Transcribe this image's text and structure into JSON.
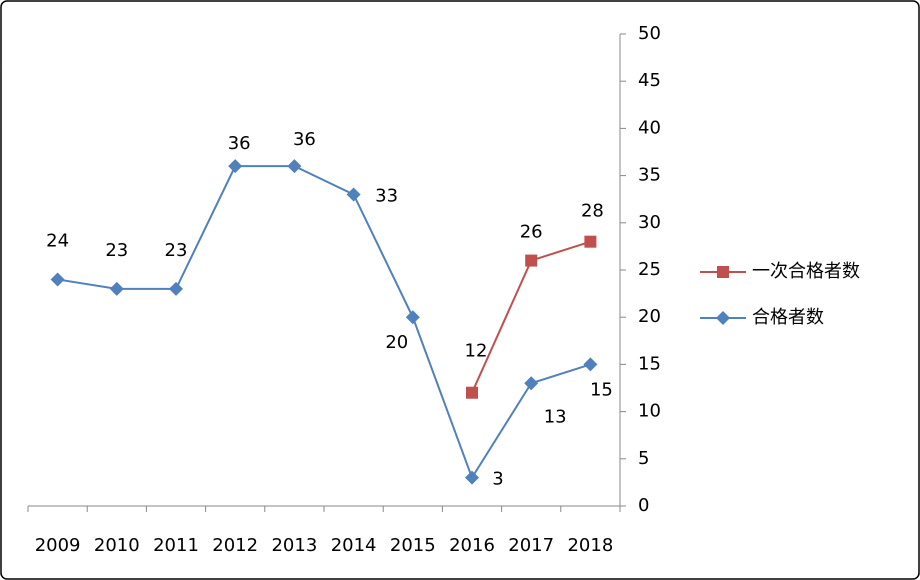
{
  "chart_data": {
    "type": "line",
    "categories": [
      "2009",
      "2010",
      "2011",
      "2012",
      "2013",
      "2014",
      "2015",
      "2016",
      "2017",
      "2018"
    ],
    "series": [
      {
        "name": "一次合格者数",
        "color": "#c0504d",
        "marker": "square",
        "values": [
          null,
          null,
          null,
          null,
          null,
          null,
          null,
          12,
          26,
          28
        ]
      },
      {
        "name": "合格者数",
        "color": "#4f81bd",
        "marker": "diamond",
        "values": [
          24,
          23,
          23,
          36,
          36,
          33,
          20,
          3,
          13,
          15
        ]
      }
    ],
    "ylim": [
      0,
      50
    ],
    "yticks": [
      0,
      5,
      10,
      15,
      20,
      25,
      30,
      35,
      40,
      45,
      50
    ],
    "y_axis_side": "right",
    "grid": false,
    "legend": "right",
    "data_labels": true
  }
}
